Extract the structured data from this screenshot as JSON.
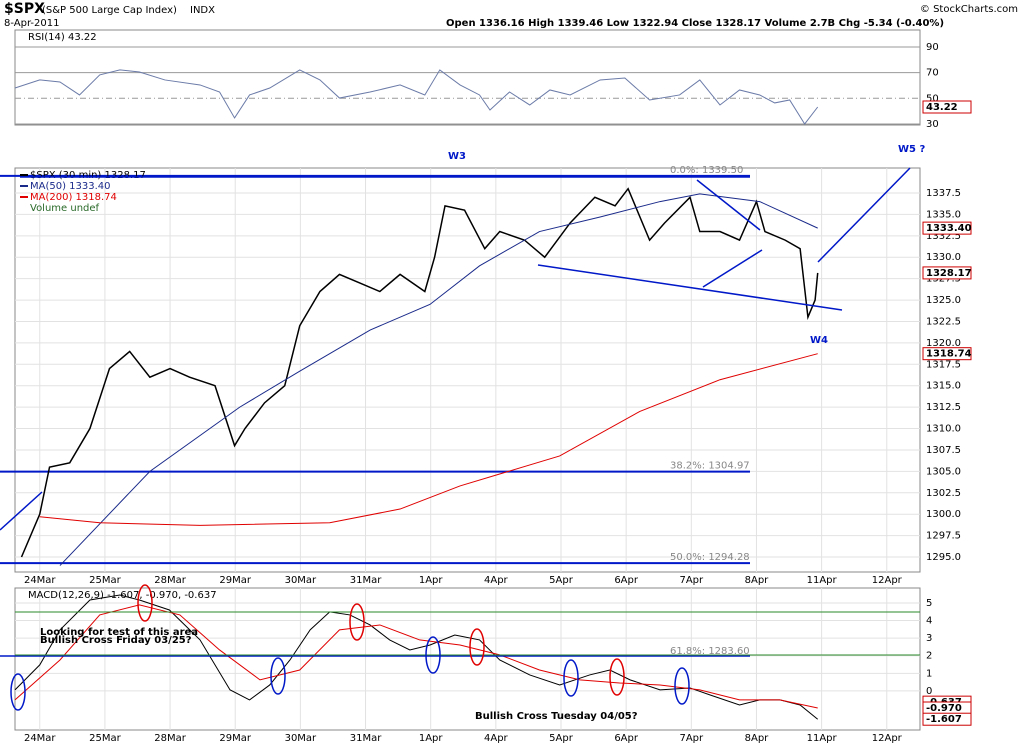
{
  "header": {
    "symbol": "$SPX",
    "name": "(S&P 500 Large Cap Index)",
    "exchange": "INDX",
    "date": "8-Apr-2011",
    "quote": "Open 1336.16  High 1339.46  Low 1322.94  Close 1328.17  Volume 2.7B  Chg -5.34 (-0.40%)",
    "credit": "© StockCharts.com"
  },
  "chart_data": [
    {
      "type": "line",
      "title": "RSI(14) 43.22",
      "xlim": [
        -0.38,
        13.51
      ],
      "ylim": [
        29.2,
        103.2
      ],
      "yticks": [
        90,
        70,
        50,
        30
      ],
      "series": [
        {
          "color": "#6b7ba8",
          "x": [
            -0.38,
            0,
            0.31,
            0.61,
            0.92,
            1.23,
            1.53,
            1.92,
            2.46,
            2.76,
            2.99,
            3.22,
            3.53,
            3.99,
            4.3,
            4.6,
            5.07,
            5.53,
            5.91,
            6.14,
            6.45,
            6.75,
            6.91,
            7.21,
            7.52,
            7.83,
            8.14,
            8.6,
            8.98,
            9.36,
            9.82,
            10.13,
            10.44,
            10.74,
            11.05,
            11.28,
            11.51,
            11.74,
            11.94
          ],
          "values": [
            58.0,
            64.3,
            62.7,
            52.6,
            68.2,
            72.1,
            70.5,
            64.3,
            60.4,
            54.9,
            34.7,
            52.6,
            58.0,
            72.1,
            64.3,
            50.2,
            54.9,
            60.4,
            52.6,
            72.1,
            60.4,
            52.6,
            40.9,
            54.9,
            44.8,
            56.5,
            52.6,
            64.3,
            65.8,
            48.7,
            52.6,
            64.3,
            44.8,
            56.5,
            52.6,
            46.4,
            48.7,
            30.0,
            43.22
          ]
        }
      ],
      "tags": [
        {
          "value": 43.22,
          "label": "43.22"
        }
      ]
    },
    {
      "type": "line",
      "xlim": [
        -0.38,
        13.51
      ],
      "ylim": [
        1293.25,
        1340.42
      ],
      "yticks": [
        {
          "value": 1295,
          "label": "1295.0"
        },
        {
          "value": 1297.5,
          "label": "1297.5"
        },
        {
          "value": 1300,
          "label": "1300.0"
        },
        {
          "value": 1302.5,
          "label": "1302.5"
        },
        {
          "value": 1305,
          "label": "1305.0"
        },
        {
          "value": 1307.5,
          "label": "1307.5"
        },
        {
          "value": 1310,
          "label": "1310.0"
        },
        {
          "value": 1312.5,
          "label": "1312.5"
        },
        {
          "value": 1315,
          "label": "1315.0"
        },
        {
          "value": 1317.5,
          "label": "1317.5"
        },
        {
          "value": 1320,
          "label": "1320.0"
        },
        {
          "value": 1322.5,
          "label": "1322.5"
        },
        {
          "value": 1325,
          "label": "1325.0"
        },
        {
          "value": 1327.5,
          "label": "1327.5"
        },
        {
          "value": 1330,
          "label": "1330.0"
        },
        {
          "value": 1332.5,
          "label": "1332.5"
        },
        {
          "value": 1335,
          "label": "1335.0"
        },
        {
          "value": 1337.5,
          "label": "1337.5"
        }
      ],
      "xticks": [
        {
          "value": 0,
          "label": "24Mar"
        },
        {
          "value": 1,
          "label": "25Mar"
        },
        {
          "value": 2,
          "label": "28Mar"
        },
        {
          "value": 3,
          "label": "29Mar"
        },
        {
          "value": 4,
          "label": "30Mar"
        },
        {
          "value": 5,
          "label": "31Mar"
        },
        {
          "value": 6,
          "label": "1Apr"
        },
        {
          "value": 7,
          "label": "4Apr"
        },
        {
          "value": 8,
          "label": "5Apr"
        },
        {
          "value": 9,
          "label": "6Apr"
        },
        {
          "value": 10,
          "label": "7Apr"
        },
        {
          "value": 11,
          "label": "8Apr"
        },
        {
          "value": 12,
          "label": "11Apr"
        },
        {
          "value": 13,
          "label": "12Apr"
        }
      ],
      "series": [
        {
          "name": "$SPX (30 min) 1328.17",
          "color": "#000000",
          "x": [
            -0.28,
            0,
            0.15,
            0.46,
            0.77,
            1.07,
            1.38,
            1.69,
            2.0,
            2.3,
            2.69,
            2.99,
            3.15,
            3.45,
            3.76,
            3.99,
            4.3,
            4.6,
            4.91,
            5.22,
            5.53,
            5.91,
            6.06,
            6.22,
            6.52,
            6.83,
            7.06,
            7.44,
            7.75,
            8.14,
            8.52,
            8.83,
            9.03,
            9.36,
            9.59,
            9.98,
            10.13,
            10.44,
            10.74,
            11.0,
            11.13,
            11.44,
            11.67,
            11.79,
            11.9,
            11.94
          ],
          "values": [
            1295,
            1300,
            1305.5,
            1306,
            1310,
            1317,
            1319,
            1316,
            1317,
            1316,
            1315,
            1308,
            1310,
            1313,
            1315,
            1322,
            1326,
            1328,
            1327,
            1326,
            1328,
            1326,
            1330,
            1336,
            1335.5,
            1331,
            1333,
            1332,
            1330,
            1334,
            1337,
            1336,
            1338,
            1332,
            1334,
            1337,
            1333,
            1333,
            1332,
            1336.5,
            1333,
            1332,
            1331,
            1323,
            1325,
            1328.17
          ]
        },
        {
          "name": "MA(50) 1333.40",
          "color": "#1a2a8a",
          "x": [
            0.31,
            1.69,
            3.07,
            3.99,
            5.07,
            5.99,
            6.75,
            7.67,
            8.6,
            9.52,
            10.13,
            11.05,
            11.94
          ],
          "values": [
            1294,
            1305,
            1312.5,
            1316.7,
            1321.5,
            1324.5,
            1329,
            1333,
            1334.7,
            1336.5,
            1337.4,
            1336.5,
            1333.4
          ]
        },
        {
          "name": "MA(200) 1318.74",
          "color": "#e00000",
          "x": [
            0,
            0.92,
            2.46,
            4.45,
            5.53,
            6.45,
            7.98,
            9.21,
            10.44,
            11.94
          ],
          "values": [
            1299.7,
            1299,
            1298.7,
            1299,
            1300.6,
            1303.3,
            1306.8,
            1312,
            1315.7,
            1318.74
          ]
        }
      ],
      "legend_extra": "Volume undef",
      "levels": [
        {
          "value": 1339.5,
          "label": "0.0%: 1339.50"
        },
        {
          "value": 1304.97,
          "label": "38.2%: 1304.97"
        },
        {
          "value": 1294.28,
          "label": "50.0%: 1294.28"
        }
      ],
      "tags": [
        {
          "value": 1333.4,
          "label": "1333.40"
        },
        {
          "value": 1328.17,
          "label": "1328.17"
        },
        {
          "value": 1318.74,
          "label": "1318.74"
        }
      ],
      "annotations": [
        "W3",
        "W4",
        "W5 ?"
      ]
    },
    {
      "type": "line",
      "title": "MACD(12,26,9) -1.607, -0.970, -0.637",
      "xlim": [
        -0.38,
        13.51
      ],
      "ylim": [
        -2.22,
        5.85
      ],
      "yticks": [
        5,
        4,
        3,
        2,
        1,
        0
      ],
      "xticks": [
        {
          "value": 0,
          "label": "24Mar"
        },
        {
          "value": 1,
          "label": "25Mar"
        },
        {
          "value": 2,
          "label": "28Mar"
        },
        {
          "value": 3,
          "label": "29Mar"
        },
        {
          "value": 4,
          "label": "30Mar"
        },
        {
          "value": 5,
          "label": "31Mar"
        },
        {
          "value": 6,
          "label": "1Apr"
        },
        {
          "value": 7,
          "label": "4Apr"
        },
        {
          "value": 8,
          "label": "5Apr"
        },
        {
          "value": 9,
          "label": "6Apr"
        },
        {
          "value": 10,
          "label": "7Apr"
        },
        {
          "value": 11,
          "label": "8Apr"
        },
        {
          "value": 12,
          "label": "11Apr"
        },
        {
          "value": 13,
          "label": "12Apr"
        }
      ],
      "series": [
        {
          "color": "#000000",
          "x": [
            -0.38,
            0,
            0.31,
            0.77,
            1.23,
            1.53,
            1.99,
            2.46,
            2.92,
            3.22,
            3.53,
            3.84,
            4.15,
            4.45,
            4.76,
            5.07,
            5.37,
            5.68,
            5.99,
            6.37,
            6.75,
            7.06,
            7.52,
            7.98,
            8.44,
            8.75,
            9.06,
            9.52,
            9.98,
            10.29,
            10.74,
            11.05,
            11.36,
            11.67,
            11.94
          ],
          "values": [
            0.06,
            1.48,
            3.47,
            5.17,
            5.45,
            5.17,
            4.6,
            2.9,
            0.06,
            -0.51,
            0.34,
            1.76,
            3.47,
            4.49,
            4.32,
            3.75,
            2.9,
            2.33,
            2.61,
            3.18,
            2.9,
            1.76,
            0.91,
            0.34,
            0.91,
            1.19,
            0.63,
            0.06,
            0.17,
            -0.23,
            -0.8,
            -0.51,
            -0.51,
            -0.8,
            -1.607
          ]
        },
        {
          "color": "#e00000",
          "x": [
            -0.38,
            0.31,
            0.92,
            1.53,
            2.15,
            2.76,
            3.38,
            3.99,
            4.6,
            5.22,
            5.83,
            6.45,
            7.06,
            7.67,
            8.29,
            8.9,
            9.52,
            10.13,
            10.74,
            11.36,
            11.94
          ],
          "values": [
            -0.51,
            1.76,
            4.32,
            4.89,
            4.32,
            2.33,
            0.63,
            1.19,
            3.47,
            3.75,
            2.9,
            2.61,
            2.05,
            1.19,
            0.63,
            0.45,
            0.34,
            0.06,
            -0.51,
            -0.51,
            -0.97
          ]
        }
      ],
      "tags": [
        {
          "value": -0.637,
          "label": "-0.637"
        },
        {
          "value": -0.97,
          "label": "-0.970"
        },
        {
          "value": -1.607,
          "label": "-1.607"
        }
      ],
      "annotations": [
        "Looking for test of this area",
        "Bullish Cross Friday 03/25?",
        "Bullish Cross Tuesday 04/05?",
        "61.8%: 1283.60"
      ]
    }
  ]
}
